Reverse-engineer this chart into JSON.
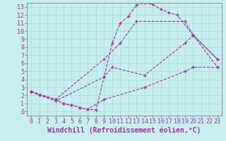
{
  "xlabel": "Windchill (Refroidissement éolien,°C)",
  "xlim": [
    -0.5,
    23.5
  ],
  "ylim": [
    -0.5,
    13.5
  ],
  "xticks": [
    0,
    1,
    2,
    3,
    4,
    5,
    6,
    7,
    8,
    9,
    10,
    11,
    12,
    13,
    14,
    15,
    16,
    17,
    18,
    19,
    20,
    21,
    22,
    23
  ],
  "yticks": [
    0,
    1,
    2,
    3,
    4,
    5,
    6,
    7,
    8,
    9,
    10,
    11,
    12,
    13
  ],
  "bg_color": "#c8eef0",
  "grid_color": "#a8d8dc",
  "line_color": "#993399",
  "tick_fontsize": 6,
  "label_fontsize": 7,
  "curve1_x": [
    0,
    1,
    3,
    4,
    5,
    6,
    7,
    8,
    9,
    10,
    11,
    12,
    13,
    14,
    15,
    16,
    17,
    18,
    20,
    23
  ],
  "curve1_y": [
    2.5,
    2.0,
    1.5,
    1.0,
    0.8,
    0.5,
    0.3,
    0.2,
    4.3,
    8.5,
    11.0,
    11.8,
    13.2,
    13.5,
    13.3,
    12.7,
    12.3,
    12.0,
    9.5,
    6.5
  ],
  "curve2_x": [
    0,
    3,
    9,
    11,
    13,
    19,
    20,
    23
  ],
  "curve2_y": [
    2.5,
    1.5,
    6.5,
    8.5,
    11.2,
    11.2,
    9.5,
    6.5
  ],
  "curve3_x": [
    0,
    3,
    9,
    10,
    14,
    19,
    20,
    23
  ],
  "curve3_y": [
    2.5,
    1.3,
    4.3,
    5.5,
    4.5,
    8.5,
    9.5,
    5.5
  ],
  "curve4_x": [
    0,
    3,
    4,
    5,
    6,
    7,
    9,
    14,
    19,
    20,
    23
  ],
  "curve4_y": [
    2.5,
    1.5,
    1.0,
    0.8,
    0.5,
    0.3,
    1.5,
    3.0,
    5.0,
    5.5,
    5.5
  ]
}
